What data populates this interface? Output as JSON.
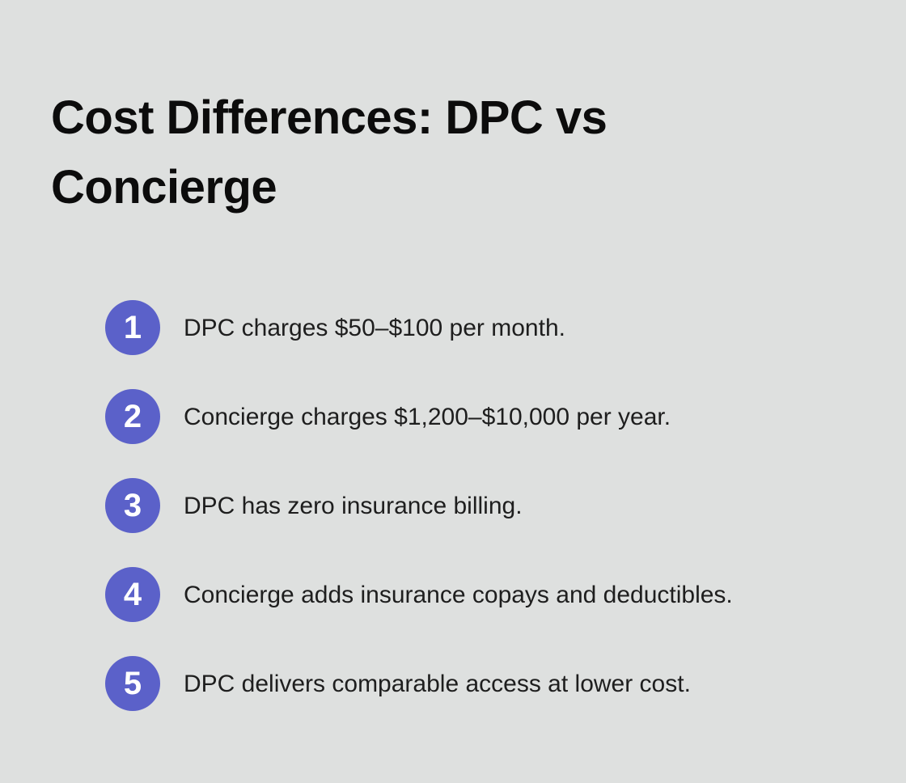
{
  "colors": {
    "background": "#dee0df",
    "accent": "#5b61c9",
    "badge_number": "#ffffff",
    "title_text": "#0c0c0c",
    "body_text": "#1e1e1e"
  },
  "title": {
    "full": "Cost Differences: DPC vs Concierge",
    "line1": "Cost Differences: DPC vs",
    "line2": "Concierge"
  },
  "list": {
    "items": [
      {
        "number": "1",
        "text": "DPC charges $50–$100 per month."
      },
      {
        "number": "2",
        "text": "Concierge charges $1,200–$10,000 per year."
      },
      {
        "number": "3",
        "text": "DPC has zero insurance billing."
      },
      {
        "number": "4",
        "text": "Concierge adds insurance copays and deductibles."
      },
      {
        "number": "5",
        "text": "DPC delivers comparable access at lower cost."
      }
    ]
  }
}
